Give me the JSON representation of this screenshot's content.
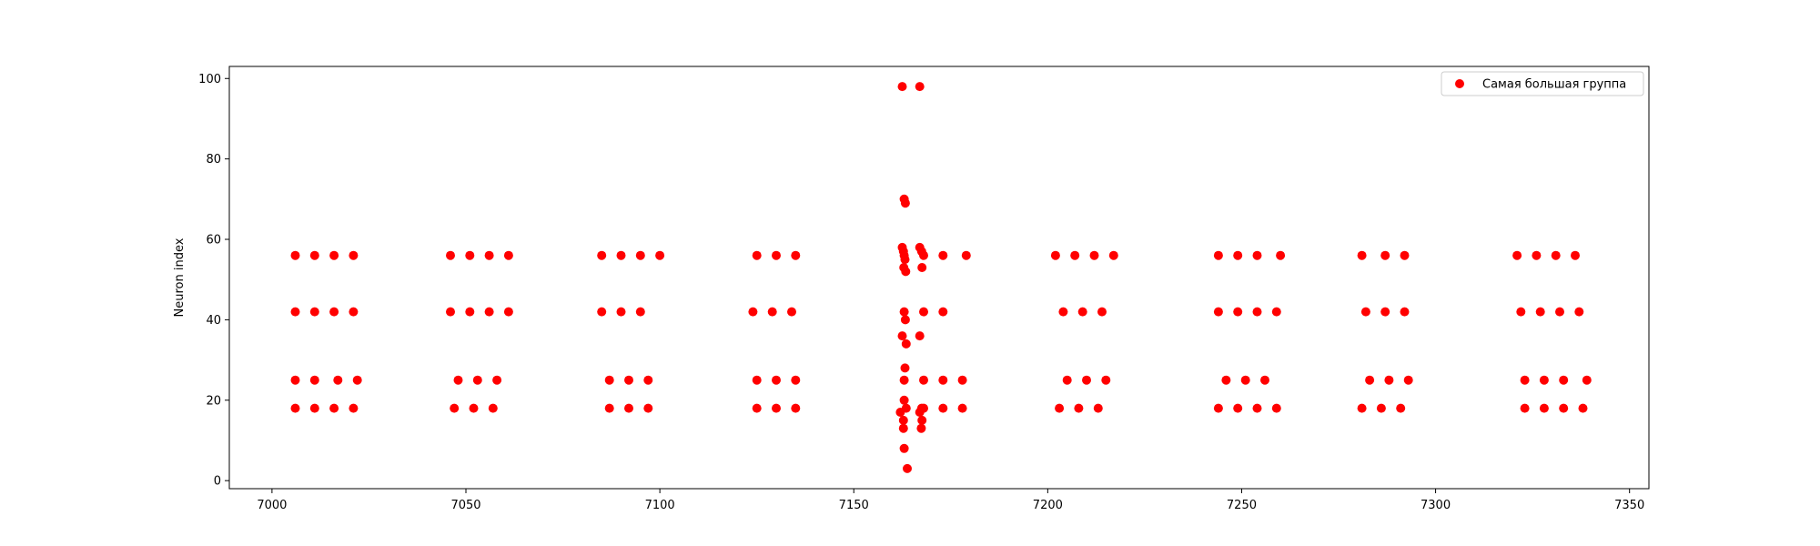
{
  "chart_data": {
    "type": "scatter",
    "title": "",
    "xlabel": "",
    "ylabel": "Neuron index",
    "xlim": [
      6989,
      7355
    ],
    "ylim": [
      -2,
      103
    ],
    "xticks": [
      7000,
      7050,
      7100,
      7150,
      7200,
      7250,
      7300,
      7350
    ],
    "yticks": [
      0,
      20,
      40,
      60,
      80,
      100
    ],
    "grid": false,
    "legend": "upper right",
    "color": "#ff0000",
    "series": [
      {
        "name": "Самая большая группа",
        "points": [
          [
            7006,
            56
          ],
          [
            7011,
            56
          ],
          [
            7016,
            56
          ],
          [
            7021,
            56
          ],
          [
            7006,
            42
          ],
          [
            7011,
            42
          ],
          [
            7016,
            42
          ],
          [
            7021,
            42
          ],
          [
            7006,
            25
          ],
          [
            7011,
            25
          ],
          [
            7017,
            25
          ],
          [
            7022,
            25
          ],
          [
            7006,
            18
          ],
          [
            7011,
            18
          ],
          [
            7016,
            18
          ],
          [
            7021,
            18
          ],
          [
            7046,
            56
          ],
          [
            7051,
            56
          ],
          [
            7056,
            56
          ],
          [
            7061,
            56
          ],
          [
            7046,
            42
          ],
          [
            7051,
            42
          ],
          [
            7056,
            42
          ],
          [
            7061,
            42
          ],
          [
            7048,
            25
          ],
          [
            7053,
            25
          ],
          [
            7058,
            25
          ],
          [
            7047,
            18
          ],
          [
            7052,
            18
          ],
          [
            7057,
            18
          ],
          [
            7085,
            56
          ],
          [
            7090,
            56
          ],
          [
            7095,
            56
          ],
          [
            7100,
            56
          ],
          [
            7085,
            42
          ],
          [
            7090,
            42
          ],
          [
            7095,
            42
          ],
          [
            7087,
            25
          ],
          [
            7092,
            25
          ],
          [
            7097,
            25
          ],
          [
            7087,
            18
          ],
          [
            7092,
            18
          ],
          [
            7097,
            18
          ],
          [
            7125,
            56
          ],
          [
            7130,
            56
          ],
          [
            7135,
            56
          ],
          [
            7124,
            42
          ],
          [
            7129,
            42
          ],
          [
            7134,
            42
          ],
          [
            7125,
            25
          ],
          [
            7130,
            25
          ],
          [
            7135,
            25
          ],
          [
            7125,
            18
          ],
          [
            7130,
            18
          ],
          [
            7135,
            18
          ],
          [
            7162.5,
            98
          ],
          [
            7167,
            98
          ],
          [
            7163,
            70
          ],
          [
            7163.3,
            69
          ],
          [
            7162.5,
            58
          ],
          [
            7162.8,
            57
          ],
          [
            7163,
            56
          ],
          [
            7163.2,
            55
          ],
          [
            7162.9,
            53
          ],
          [
            7163.4,
            52
          ],
          [
            7167,
            58
          ],
          [
            7167.5,
            57
          ],
          [
            7168,
            56
          ],
          [
            7167.6,
            53
          ],
          [
            7173,
            56
          ],
          [
            7179,
            56
          ],
          [
            7163,
            42
          ],
          [
            7163.3,
            40
          ],
          [
            7168,
            42
          ],
          [
            7173,
            42
          ],
          [
            7162.5,
            36
          ],
          [
            7167,
            36
          ],
          [
            7163.5,
            34
          ],
          [
            7163.2,
            28
          ],
          [
            7163,
            25
          ],
          [
            7168,
            25
          ],
          [
            7173,
            25
          ],
          [
            7178,
            25
          ],
          [
            7163,
            20
          ],
          [
            7162,
            17
          ],
          [
            7163.5,
            18
          ],
          [
            7167,
            17
          ],
          [
            7167.5,
            18
          ],
          [
            7168,
            18
          ],
          [
            7173,
            18
          ],
          [
            7178,
            18
          ],
          [
            7162.8,
            15
          ],
          [
            7167.6,
            15
          ],
          [
            7162.8,
            13
          ],
          [
            7167.4,
            13
          ],
          [
            7163,
            8
          ],
          [
            7163.8,
            3
          ],
          [
            7202,
            56
          ],
          [
            7207,
            56
          ],
          [
            7212,
            56
          ],
          [
            7217,
            56
          ],
          [
            7204,
            42
          ],
          [
            7209,
            42
          ],
          [
            7214,
            42
          ],
          [
            7205,
            25
          ],
          [
            7210,
            25
          ],
          [
            7215,
            25
          ],
          [
            7203,
            18
          ],
          [
            7208,
            18
          ],
          [
            7213,
            18
          ],
          [
            7244,
            56
          ],
          [
            7249,
            56
          ],
          [
            7254,
            56
          ],
          [
            7260,
            56
          ],
          [
            7244,
            42
          ],
          [
            7249,
            42
          ],
          [
            7254,
            42
          ],
          [
            7259,
            42
          ],
          [
            7246,
            25
          ],
          [
            7251,
            25
          ],
          [
            7256,
            25
          ],
          [
            7244,
            18
          ],
          [
            7249,
            18
          ],
          [
            7254,
            18
          ],
          [
            7259,
            18
          ],
          [
            7281,
            56
          ],
          [
            7287,
            56
          ],
          [
            7292,
            56
          ],
          [
            7282,
            42
          ],
          [
            7287,
            42
          ],
          [
            7292,
            42
          ],
          [
            7283,
            25
          ],
          [
            7288,
            25
          ],
          [
            7293,
            25
          ],
          [
            7281,
            18
          ],
          [
            7286,
            18
          ],
          [
            7291,
            18
          ],
          [
            7321,
            56
          ],
          [
            7326,
            56
          ],
          [
            7331,
            56
          ],
          [
            7336,
            56
          ],
          [
            7322,
            42
          ],
          [
            7327,
            42
          ],
          [
            7332,
            42
          ],
          [
            7337,
            42
          ],
          [
            7323,
            25
          ],
          [
            7328,
            25
          ],
          [
            7333,
            25
          ],
          [
            7339,
            25
          ],
          [
            7323,
            18
          ],
          [
            7328,
            18
          ],
          [
            7333,
            18
          ],
          [
            7338,
            18
          ]
        ]
      }
    ]
  }
}
